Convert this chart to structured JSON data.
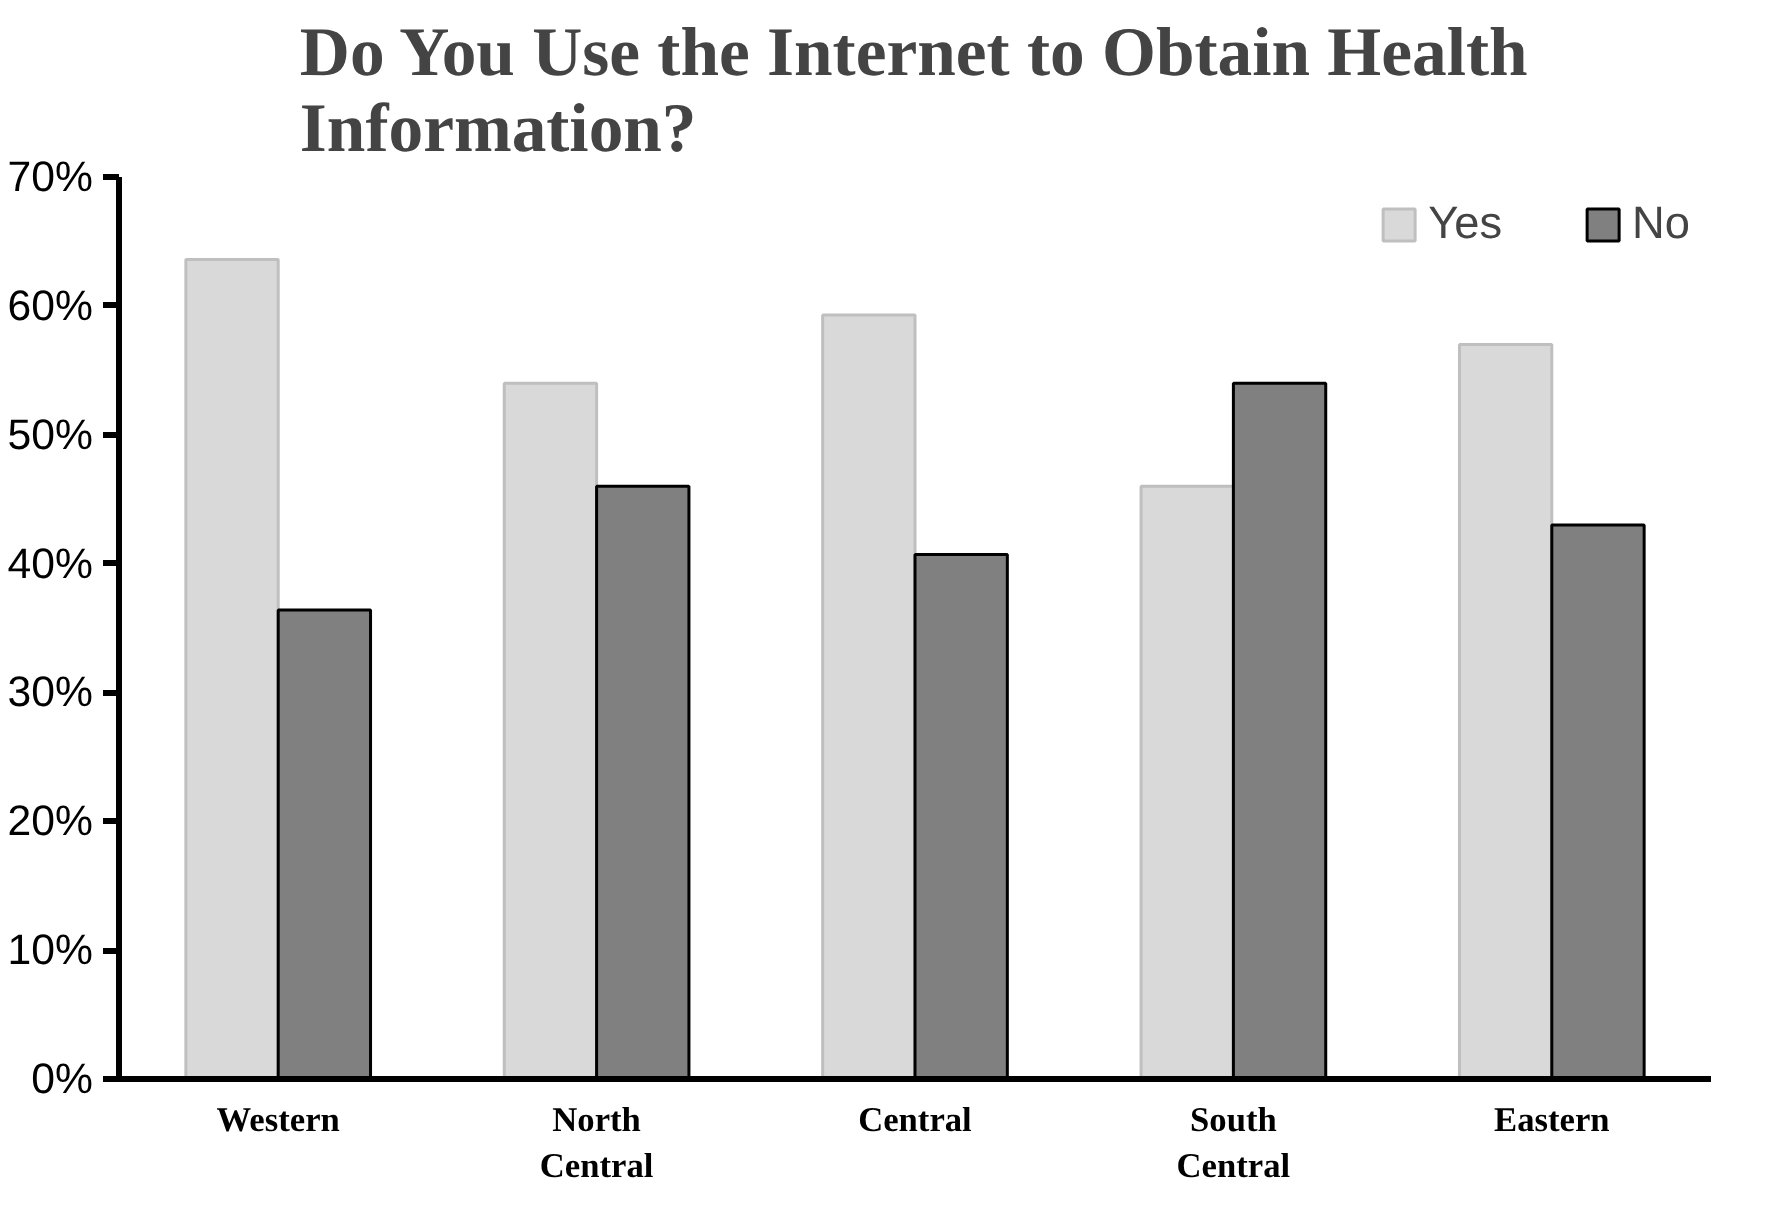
{
  "chart_data": {
    "type": "bar",
    "title": "Do You Use the Internet to Obtain Health Information?",
    "categories": [
      "Western",
      "North Central",
      "Central",
      "South Central",
      "Eastern"
    ],
    "series": [
      {
        "name": "Yes",
        "color": "#d9d9d9",
        "values": [
          63.6,
          54.0,
          59.3,
          46.0,
          57.0
        ]
      },
      {
        "name": "No",
        "color": "#808080",
        "values": [
          36.4,
          46.0,
          40.7,
          54.0,
          43.0
        ]
      }
    ],
    "ylim": [
      0,
      70
    ],
    "yticks": [
      {
        "value": 0,
        "label": "0%"
      },
      {
        "value": 10,
        "label": "10%"
      },
      {
        "value": 20,
        "label": "20%"
      },
      {
        "value": 30,
        "label": "30%"
      },
      {
        "value": 40,
        "label": "40%"
      },
      {
        "value": 50,
        "label": "50%"
      },
      {
        "value": 60,
        "label": "60%"
      },
      {
        "value": 70,
        "label": "70%"
      }
    ],
    "grid": false,
    "legend": "top right"
  }
}
